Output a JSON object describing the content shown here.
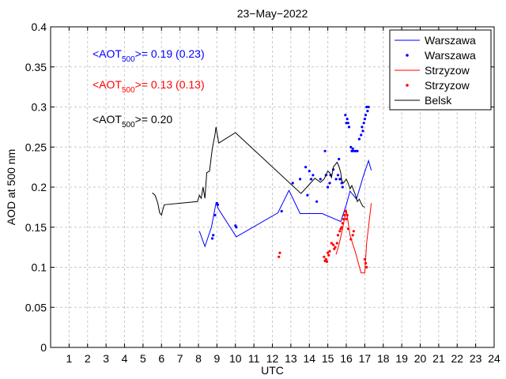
{
  "chart_data": {
    "type": "line",
    "title": "23−May−2022",
    "xlabel": "UTC",
    "ylabel": "AOD at 500 nm",
    "xlim": [
      0,
      24
    ],
    "ylim": [
      0,
      0.4
    ],
    "xticks": [
      1,
      2,
      3,
      4,
      5,
      6,
      7,
      8,
      9,
      10,
      11,
      12,
      13,
      14,
      15,
      16,
      17,
      18,
      19,
      20,
      21,
      22,
      23,
      24
    ],
    "xtick_labels": [
      "1",
      "2",
      "3",
      "4",
      "5",
      "6",
      "7",
      "8",
      "9",
      "10",
      "11",
      "12",
      "13",
      "14",
      "15",
      "16",
      "17",
      "18",
      "19",
      "20",
      "21",
      "22",
      "23",
      "24"
    ],
    "yticks": [
      0,
      0.05,
      0.1,
      0.15,
      0.2,
      0.25,
      0.3,
      0.35,
      0.4
    ],
    "ytick_labels": [
      "0",
      "0.05",
      "0.1",
      "0.15",
      "0.2",
      "0.25",
      "0.3",
      "0.35",
      "0.4"
    ],
    "grid": "dashed",
    "legend": {
      "placement": "top-right",
      "entries": [
        {
          "label": "Warszawa",
          "style": "line",
          "color": "#0000ff"
        },
        {
          "label": "Warszawa",
          "style": "dots",
          "color": "#0000ff"
        },
        {
          "label": "Strzyzow",
          "style": "line",
          "color": "#ff0000"
        },
        {
          "label": "Strzyzow",
          "style": "dots",
          "color": "#ff0000"
        },
        {
          "label": "Belsk",
          "style": "line",
          "color": "#000000"
        }
      ]
    },
    "annotations": [
      {
        "prefix": "<AOT",
        "sub": "500",
        "suffix": ">= 0.19 (0.23)",
        "color": "#0000ff"
      },
      {
        "prefix": "<AOT",
        "sub": "500",
        "suffix": ">= 0.13 (0.13)",
        "color": "#ff0000"
      },
      {
        "prefix": "<AOT",
        "sub": "500",
        "suffix": ">= 0.20",
        "color": "#000000"
      }
    ],
    "series": [
      {
        "color": "#0000ff",
        "style": "line",
        "x": [
          8.05,
          8.35,
          8.7,
          8.95,
          9.1,
          10.05,
          12.3,
          12.9,
          13.5,
          14.7,
          15.7,
          16.0,
          16.2,
          16.55,
          16.9,
          17.2,
          17.35
        ],
        "y": [
          0.145,
          0.126,
          0.15,
          0.18,
          0.172,
          0.138,
          0.168,
          0.196,
          0.167,
          0.167,
          0.157,
          0.178,
          0.195,
          0.185,
          0.212,
          0.233,
          0.221
        ]
      },
      {
        "color": "#0000ff",
        "style": "dots",
        "x": [
          8.75,
          8.8,
          8.9,
          9.0,
          9.05,
          10.0,
          10.05,
          12.5,
          13.1,
          13.5,
          13.8,
          13.9,
          14.0,
          14.1,
          14.2,
          14.4,
          14.6,
          14.85,
          14.9,
          15.0,
          15.1,
          15.15,
          15.3,
          15.45,
          15.55,
          15.6,
          15.65,
          15.7,
          15.75,
          15.8,
          15.95,
          16.0,
          16.05,
          16.1,
          16.15,
          16.25,
          16.3,
          16.35,
          16.4,
          16.5,
          16.6,
          16.7,
          16.8,
          16.85,
          16.9,
          16.95,
          17.0,
          17.05,
          17.1,
          17.15,
          17.2
        ],
        "y": [
          0.136,
          0.14,
          0.165,
          0.18,
          0.178,
          0.152,
          0.15,
          0.17,
          0.205,
          0.21,
          0.225,
          0.19,
          0.22,
          0.21,
          0.215,
          0.182,
          0.21,
          0.245,
          0.215,
          0.2,
          0.205,
          0.215,
          0.222,
          0.21,
          0.215,
          0.235,
          0.21,
          0.21,
          0.205,
          0.2,
          0.29,
          0.28,
          0.285,
          0.28,
          0.275,
          0.25,
          0.245,
          0.248,
          0.245,
          0.245,
          0.245,
          0.26,
          0.265,
          0.275,
          0.27,
          0.28,
          0.285,
          0.29,
          0.3,
          0.295,
          0.3
        ]
      },
      {
        "color": "#ff0000",
        "style": "line",
        "x": [
          15.45,
          15.6,
          15.8,
          16.0,
          16.2,
          16.5,
          16.8,
          17.0,
          17.1,
          17.35
        ],
        "y": [
          0.116,
          0.128,
          0.148,
          0.172,
          0.14,
          0.118,
          0.093,
          0.093,
          0.13,
          0.18
        ]
      },
      {
        "color": "#ff0000",
        "style": "dots",
        "x": [
          12.35,
          12.4,
          14.8,
          14.85,
          14.9,
          14.95,
          15.0,
          15.05,
          15.1,
          15.2,
          15.3,
          15.35,
          15.4,
          15.5,
          15.55,
          15.65,
          15.7,
          15.75,
          15.8,
          15.85,
          15.9,
          15.95,
          16.0,
          16.05,
          16.1,
          16.25,
          16.35,
          16.4,
          17.0,
          17.05,
          17.1
        ],
        "y": [
          0.113,
          0.118,
          0.113,
          0.108,
          0.11,
          0.107,
          0.118,
          0.115,
          0.12,
          0.13,
          0.128,
          0.123,
          0.125,
          0.13,
          0.14,
          0.145,
          0.148,
          0.15,
          0.155,
          0.16,
          0.165,
          0.17,
          0.16,
          0.165,
          0.148,
          0.135,
          0.14,
          0.145,
          0.11,
          0.105,
          0.1
        ]
      },
      {
        "color": "#000000",
        "style": "line",
        "x": [
          5.5,
          5.65,
          5.8,
          5.9,
          6.0,
          6.05,
          6.15,
          7.95,
          8.05,
          8.15,
          8.25,
          8.35,
          8.45,
          8.6,
          8.75,
          8.9,
          8.95,
          9.1,
          10.0,
          13.55,
          14.3,
          14.6,
          14.8,
          15.0,
          15.1,
          15.2,
          15.3,
          15.5,
          15.6,
          15.7,
          15.75,
          15.85,
          16.0,
          16.1,
          16.2,
          16.3,
          16.4,
          16.5,
          16.6,
          16.7,
          16.8,
          16.9,
          17.0
        ],
        "y": [
          0.193,
          0.19,
          0.18,
          0.168,
          0.165,
          0.17,
          0.178,
          0.182,
          0.19,
          0.186,
          0.2,
          0.186,
          0.218,
          0.22,
          0.248,
          0.266,
          0.275,
          0.255,
          0.268,
          0.192,
          0.211,
          0.206,
          0.21,
          0.22,
          0.218,
          0.212,
          0.225,
          0.231,
          0.226,
          0.218,
          0.208,
          0.205,
          0.21,
          0.205,
          0.198,
          0.202,
          0.196,
          0.19,
          0.182,
          0.185,
          0.18,
          0.176,
          0.175
        ]
      }
    ]
  }
}
